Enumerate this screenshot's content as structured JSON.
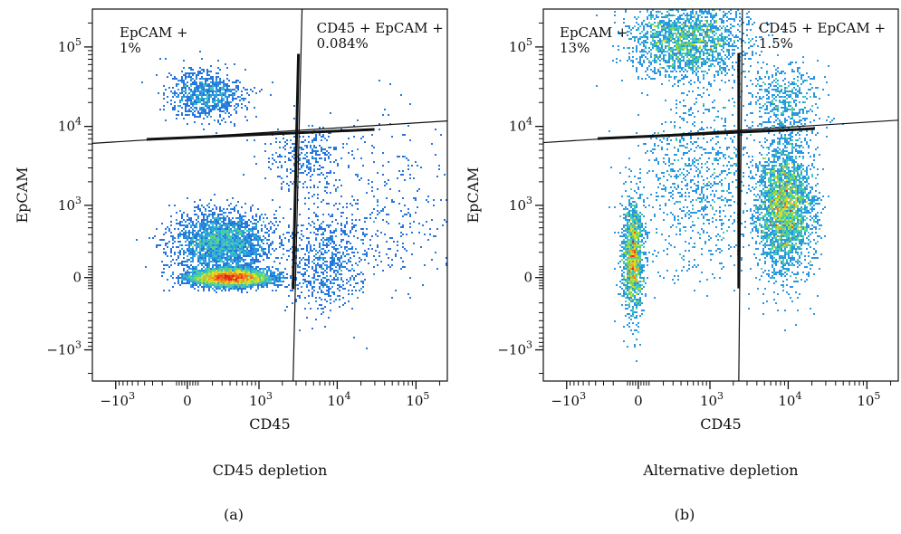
{
  "chart_data": [
    {
      "type": "scatter",
      "subtype": "flow-cytometry-density",
      "panel_label": "(a)",
      "subtitle": "CD45 depletion",
      "xlabel": "CD45",
      "ylabel": "EpCAM",
      "x_scale": "biexponential",
      "y_scale": "biexponential",
      "xlim": [
        -2000,
        250000
      ],
      "ylim": [
        -2500,
        300000
      ],
      "x_ticks": [
        {
          "value": -1000,
          "base": "−10",
          "exp": "3"
        },
        {
          "value": 0,
          "base": "0",
          "exp": ""
        },
        {
          "value": 1000,
          "base": "10",
          "exp": "3"
        },
        {
          "value": 10000,
          "base": "10",
          "exp": "4"
        },
        {
          "value": 100000,
          "base": "10",
          "exp": "5"
        }
      ],
      "y_ticks": [
        {
          "value": -1000,
          "base": "−10",
          "exp": "3"
        },
        {
          "value": 0,
          "base": "0",
          "exp": ""
        },
        {
          "value": 1000,
          "base": "10",
          "exp": "3"
        },
        {
          "value": 10000,
          "base": "10",
          "exp": "4"
        },
        {
          "value": 100000,
          "base": "10",
          "exp": "5"
        }
      ],
      "gates": [
        {
          "name": "EpCAM +",
          "percent": "1%",
          "quadrant": "top-left"
        },
        {
          "name": "CD45 + EpCAM +",
          "percent": "0.084%",
          "quadrant": "top-right"
        }
      ],
      "gate_center": [
        2600,
        8800
      ],
      "populations": [
        {
          "x": 400,
          "y": 0,
          "sx": 0.22,
          "sy": 0.045,
          "n": 5200,
          "peak": 1.0
        },
        {
          "x": 300,
          "y": 300,
          "sx": 0.26,
          "sy": 0.16,
          "n": 2600,
          "peak": 0.35
        },
        {
          "x": 150,
          "y": 25000,
          "sx": 0.22,
          "sy": 0.13,
          "n": 900,
          "peak": 0.3
        },
        {
          "x": 4000,
          "y": 4000,
          "sx": 0.22,
          "sy": 0.16,
          "n": 300,
          "peak": 0.12
        },
        {
          "x": 7000,
          "y": 100,
          "sx": 0.22,
          "sy": 0.25,
          "n": 600,
          "peak": 0.18
        },
        {
          "x": 30000,
          "y": 800,
          "sx": 0.45,
          "sy": 0.45,
          "n": 400,
          "peak": 0.05
        }
      ]
    },
    {
      "type": "scatter",
      "subtype": "flow-cytometry-density",
      "panel_label": "(b)",
      "subtitle": "Alternative depletion",
      "xlabel": "CD45",
      "ylabel": "EpCAM",
      "x_scale": "biexponential",
      "y_scale": "biexponential",
      "xlim": [
        -2000,
        250000
      ],
      "ylim": [
        -2500,
        300000
      ],
      "x_ticks": [
        {
          "value": -1000,
          "base": "−10",
          "exp": "3"
        },
        {
          "value": 0,
          "base": "0",
          "exp": ""
        },
        {
          "value": 1000,
          "base": "10",
          "exp": "3"
        },
        {
          "value": 10000,
          "base": "10",
          "exp": "4"
        },
        {
          "value": 100000,
          "base": "10",
          "exp": "5"
        }
      ],
      "y_ticks": [
        {
          "value": -1000,
          "base": "−10",
          "exp": "3"
        },
        {
          "value": 0,
          "base": "0",
          "exp": ""
        },
        {
          "value": 1000,
          "base": "10",
          "exp": "3"
        },
        {
          "value": 10000,
          "base": "10",
          "exp": "4"
        },
        {
          "value": 100000,
          "base": "10",
          "exp": "5"
        }
      ],
      "gates": [
        {
          "name": "EpCAM +",
          "percent": "13%",
          "quadrant": "top-left"
        },
        {
          "name": "CD45 + EpCAM +",
          "percent": "1.5%",
          "quadrant": "top-right"
        }
      ],
      "gate_center": [
        1900,
        9000
      ],
      "populations": [
        {
          "x": -40,
          "y": 150,
          "sx": 0.06,
          "sy": 0.3,
          "n": 1400,
          "peak": 1.0
        },
        {
          "x": 500,
          "y": 120000,
          "sx": 0.32,
          "sy": 0.2,
          "n": 2000,
          "peak": 0.55
        },
        {
          "x": 9000,
          "y": 900,
          "sx": 0.16,
          "sy": 0.35,
          "n": 3000,
          "peak": 0.75
        },
        {
          "x": 9000,
          "y": 20000,
          "sx": 0.2,
          "sy": 0.2,
          "n": 500,
          "peak": 0.15
        },
        {
          "x": 700,
          "y": 2000,
          "sx": 0.35,
          "sy": 0.5,
          "n": 900,
          "peak": 0.1
        }
      ]
    }
  ]
}
